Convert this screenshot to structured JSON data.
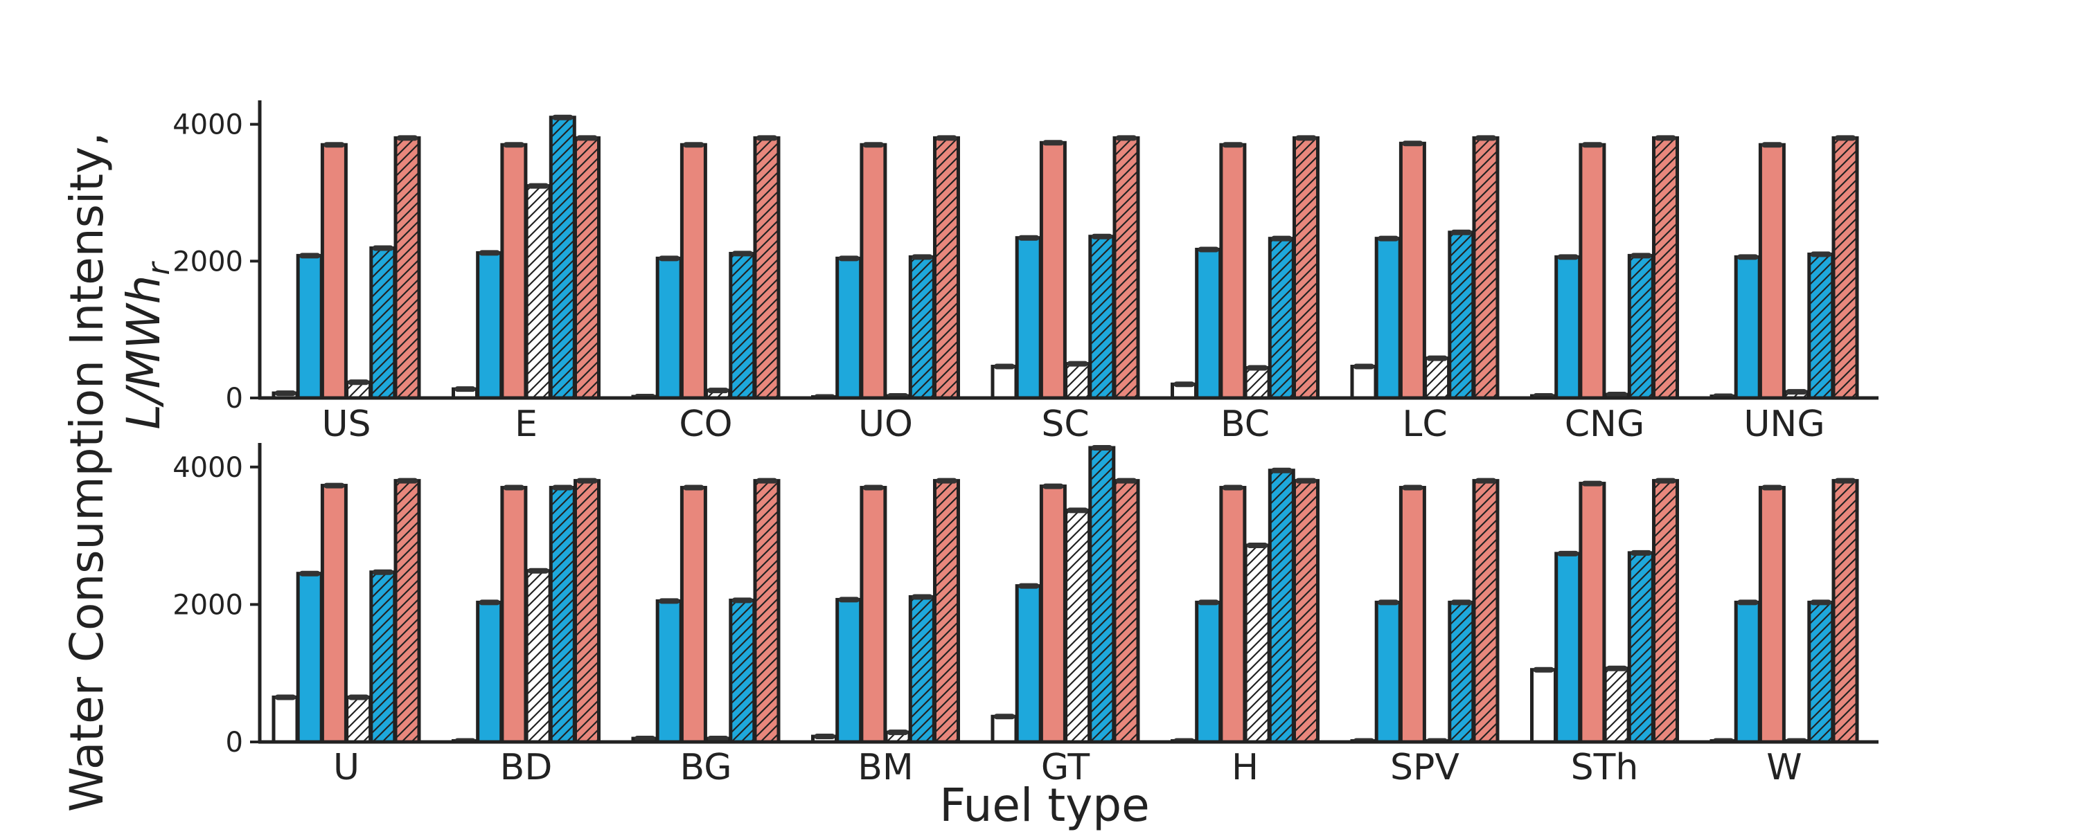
{
  "chart_data": {
    "type": "bar",
    "xlabel": "Fuel type",
    "ylabel_line1": "Water Consumption Intensity,",
    "ylabel_line2_base": "L/MWh",
    "ylabel_line2_sub": "r",
    "yticks": [
      "0",
      "2000",
      "4000"
    ],
    "ylim": [
      0,
      4350
    ],
    "grid": false,
    "legend": "none",
    "series_styles": [
      {
        "fill": "#ffffff",
        "hatch": false
      },
      {
        "fill": "#1ea8dc",
        "hatch": false
      },
      {
        "fill": "#e8877c",
        "hatch": false
      },
      {
        "fill": "#ffffff",
        "hatch": true
      },
      {
        "fill": "#1ea8dc",
        "hatch": true
      },
      {
        "fill": "#e8877c",
        "hatch": true
      }
    ],
    "panels": [
      {
        "categories": [
          "US",
          "E",
          "CO",
          "UO",
          "SC",
          "BC",
          "LC",
          "CNG",
          "UNG"
        ],
        "series": [
          {
            "values": [
              70,
              130,
              20,
              15,
              460,
              200,
              460,
              30,
              25
            ]
          },
          {
            "values": [
              2080,
              2120,
              2040,
              2040,
              2340,
              2170,
              2330,
              2060,
              2060
            ]
          },
          {
            "values": [
              3700,
              3700,
              3700,
              3700,
              3730,
              3700,
              3720,
              3700,
              3700
            ]
          },
          {
            "values": [
              230,
              3100,
              110,
              30,
              500,
              440,
              580,
              50,
              90
            ]
          },
          {
            "values": [
              2190,
              4100,
              2110,
              2060,
              2360,
              2330,
              2420,
              2080,
              2100
            ]
          },
          {
            "values": [
              3800,
              3800,
              3800,
              3800,
              3800,
              3800,
              3800,
              3800,
              3800
            ]
          }
        ]
      },
      {
        "categories": [
          "U",
          "BD",
          "BG",
          "BM",
          "GT",
          "H",
          "SPV",
          "STh",
          "W"
        ],
        "series": [
          {
            "values": [
              650,
              10,
              50,
              80,
              370,
              5,
              5,
              1050,
              5
            ]
          },
          {
            "values": [
              2450,
              2030,
              2050,
              2070,
              2270,
              2030,
              2030,
              2740,
              2030
            ]
          },
          {
            "values": [
              3730,
              3700,
              3700,
              3700,
              3720,
              3700,
              3700,
              3760,
              3700
            ]
          },
          {
            "values": [
              650,
              2490,
              50,
              140,
              3370,
              2860,
              10,
              1070,
              10
            ]
          },
          {
            "values": [
              2470,
              3700,
              2060,
              2110,
              4280,
              3950,
              2030,
              2750,
              2030
            ]
          },
          {
            "values": [
              3800,
              3800,
              3800,
              3800,
              3800,
              3800,
              3800,
              3800,
              3800
            ]
          }
        ]
      }
    ]
  }
}
